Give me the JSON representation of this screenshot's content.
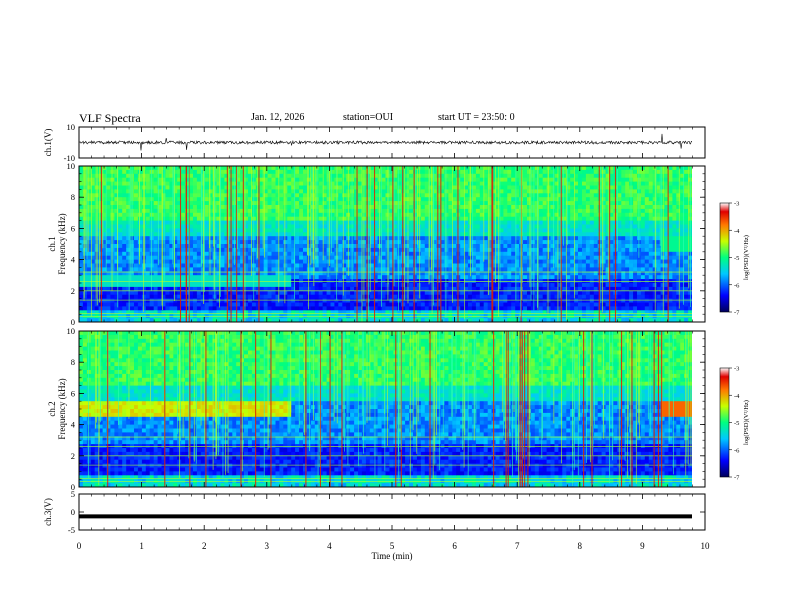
{
  "header": {
    "title": "VLF Spectra",
    "date": "Jan. 12, 2026",
    "station": "station=OUI",
    "start": "start UT = 23:50: 0"
  },
  "chart_data": [
    {
      "type": "line",
      "name": "ch1-waveform",
      "ylabel": "ch.1(V)",
      "ylim": [
        -10,
        10
      ],
      "yticks": [
        10,
        -10
      ],
      "baseline": 0,
      "xlim": [
        0,
        10
      ]
    },
    {
      "type": "heatmap",
      "name": "ch1-spectrogram",
      "ylabel": "ch.1 Frequency (kHz)",
      "ylim": [
        0,
        10
      ],
      "yticks": [
        0,
        2,
        4,
        6,
        8,
        10
      ],
      "xlim": [
        0,
        10
      ],
      "colorbar": {
        "label": "log(PSD)(V²/Hz)",
        "min": -7,
        "max": -3,
        "ticks": [
          -3,
          -4,
          -5,
          -6,
          -7
        ]
      }
    },
    {
      "type": "heatmap",
      "name": "ch2-spectrogram",
      "ylabel": "ch.2 Frequency (kHz)",
      "ylim": [
        0,
        10
      ],
      "yticks": [
        0,
        2,
        4,
        6,
        8,
        10
      ],
      "xlim": [
        0,
        10
      ],
      "colorbar": {
        "label": "log(PSD)(V²/Hz)",
        "min": -7,
        "max": -3,
        "ticks": [
          -3,
          -4,
          -5,
          -6,
          -7
        ]
      }
    },
    {
      "type": "line",
      "name": "ch3-waveform",
      "ylabel": "ch.3(V)",
      "ylim": [
        -5,
        5
      ],
      "yticks": [
        5,
        0,
        -5
      ],
      "baseline": -1.2,
      "xlim": [
        0,
        10
      ]
    }
  ],
  "xaxis": {
    "label": "Time (min)",
    "ticks": [
      0,
      1,
      2,
      3,
      4,
      5,
      6,
      7,
      8,
      9,
      10
    ]
  }
}
